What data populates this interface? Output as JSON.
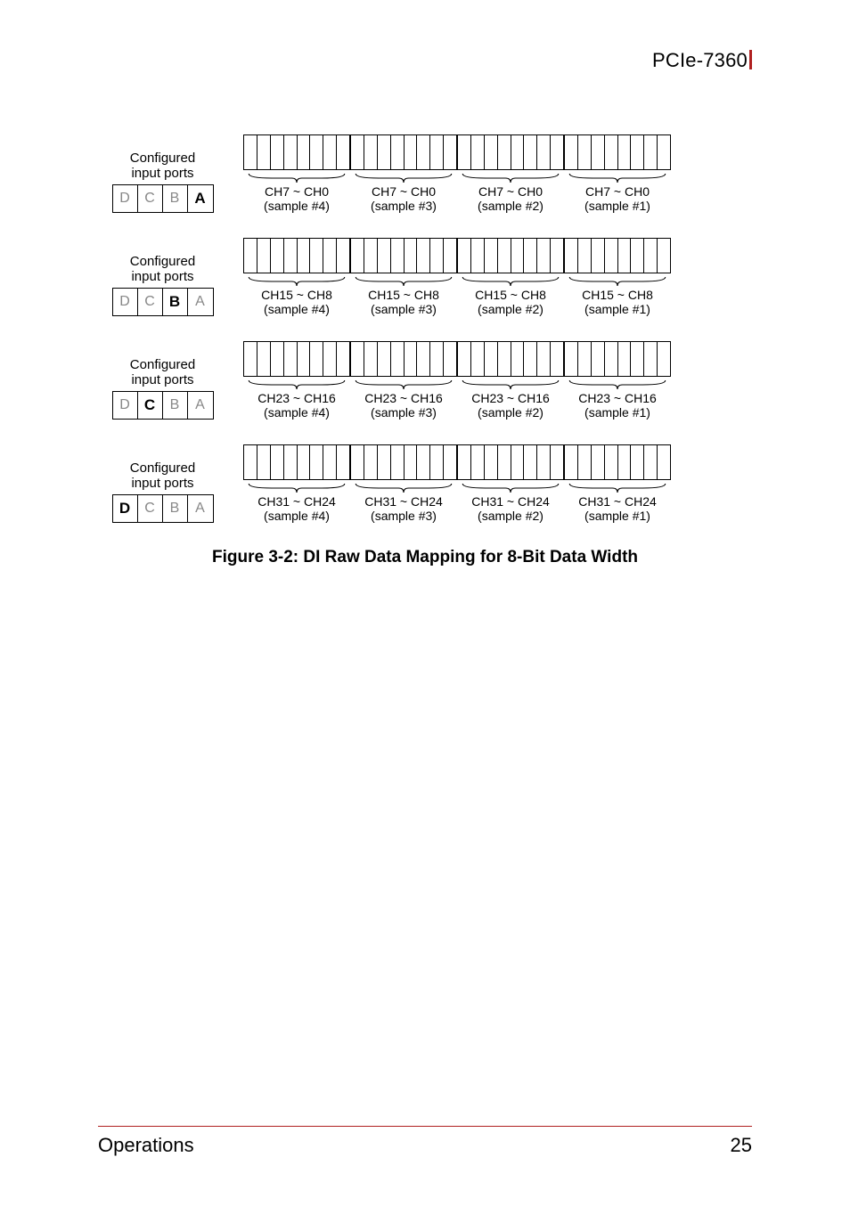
{
  "header": {
    "title": "PCIe-7360"
  },
  "diagram": {
    "config_label_line1": "Configured",
    "config_label_line2": "input ports",
    "port_letters": [
      "D",
      "C",
      "B",
      "A"
    ],
    "bit_strip": {
      "total_cells": 32,
      "group_size": 8,
      "border_color": "#000000",
      "cell_bg": "#ffffff"
    },
    "rows": [
      {
        "active_port_index": 3,
        "groups": [
          {
            "ch": "CH7 ~ CH0",
            "sample": "(sample #4)"
          },
          {
            "ch": "CH7 ~ CH0",
            "sample": "(sample #3)"
          },
          {
            "ch": "CH7 ~ CH0",
            "sample": "(sample #2)"
          },
          {
            "ch": "CH7 ~ CH0",
            "sample": "(sample #1)"
          }
        ]
      },
      {
        "active_port_index": 2,
        "groups": [
          {
            "ch": "CH15 ~ CH8",
            "sample": "(sample #4)"
          },
          {
            "ch": "CH15 ~ CH8",
            "sample": "(sample #3)"
          },
          {
            "ch": "CH15 ~ CH8",
            "sample": "(sample #2)"
          },
          {
            "ch": "CH15 ~ CH8",
            "sample": "(sample #1)"
          }
        ]
      },
      {
        "active_port_index": 1,
        "groups": [
          {
            "ch": "CH23 ~ CH16",
            "sample": "(sample #4)"
          },
          {
            "ch": "CH23 ~ CH16",
            "sample": "(sample #3)"
          },
          {
            "ch": "CH23 ~ CH16",
            "sample": "(sample #2)"
          },
          {
            "ch": "CH23 ~ CH16",
            "sample": "(sample #1)"
          }
        ]
      },
      {
        "active_port_index": 0,
        "groups": [
          {
            "ch": "CH31 ~ CH24",
            "sample": "(sample #4)"
          },
          {
            "ch": "CH31 ~ CH24",
            "sample": "(sample #3)"
          },
          {
            "ch": "CH31 ~ CH24",
            "sample": "(sample #2)"
          },
          {
            "ch": "CH31 ~ CH24",
            "sample": "(sample #1)"
          }
        ]
      }
    ]
  },
  "caption": "Figure 3-2: DI Raw Data Mapping for 8-Bit Data Width",
  "footer": {
    "section": "Operations",
    "page": "25",
    "rule_color": "#b02020"
  }
}
